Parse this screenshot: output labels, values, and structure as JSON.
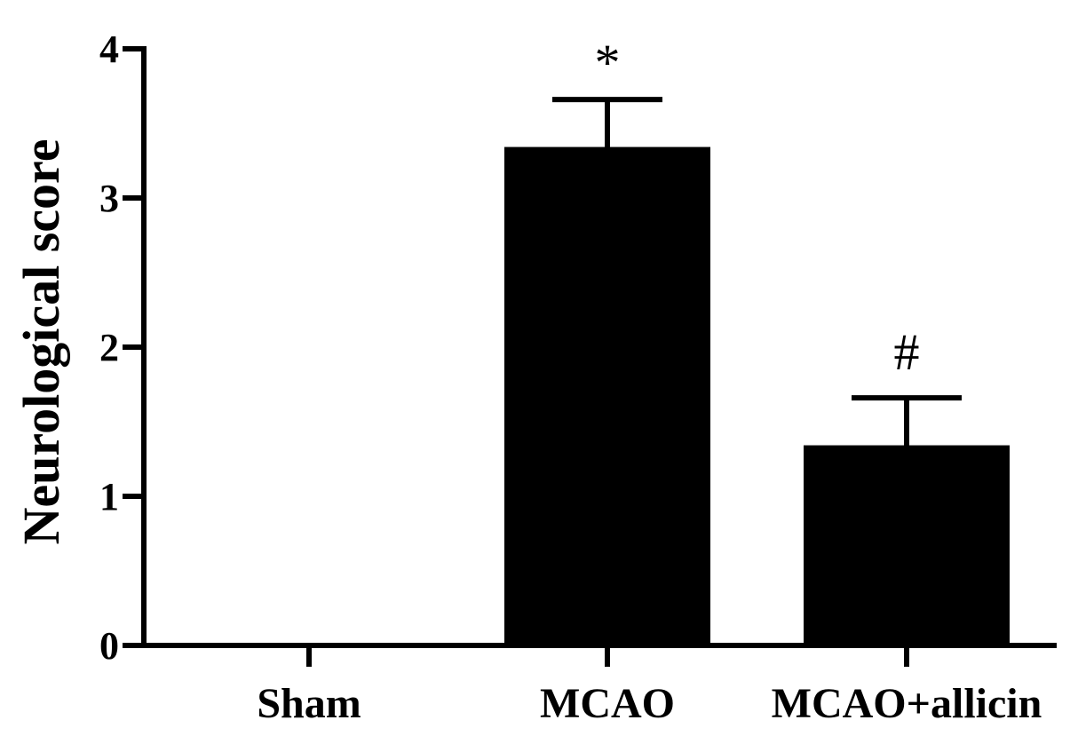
{
  "chart_data": {
    "type": "bar",
    "title": "",
    "xlabel": "",
    "ylabel": "Neurological score",
    "ylim": [
      0,
      4
    ],
    "yticks": [
      0,
      1,
      2,
      3,
      4
    ],
    "categories": [
      "Sham",
      "MCAO",
      "MCAO+allicin"
    ],
    "values": [
      0,
      3.33,
      1.33
    ],
    "errors": [
      0,
      0.33,
      0.33
    ],
    "annotations": [
      "",
      "*",
      "#"
    ],
    "grid": false,
    "bar_color": "#000000"
  }
}
